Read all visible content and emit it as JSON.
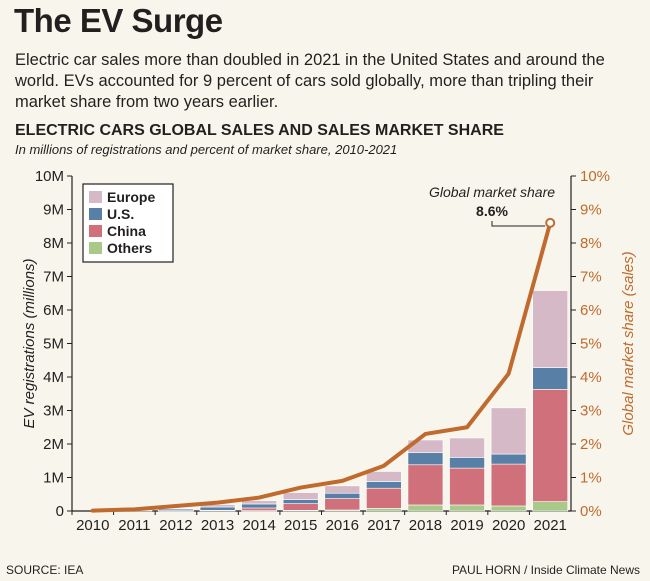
{
  "headline": "The EV Surge",
  "dek": "Electric car sales more than doubled in 2021 in the United States and around the world. EVs accounted for 9 percent of cars sold globally, more than tripling their market share from two years earlier.",
  "footer": {
    "source": "SOURCE: IEA",
    "credit": "PAUL HORN / Inside Climate News"
  },
  "chart_data": {
    "type": "bar",
    "stacked": true,
    "title": "ELECTRIC CARS GLOBAL SALES AND SALES MARKET SHARE",
    "subtitle": "In millions of registrations and percent of market share, 2010-2021",
    "ylabel": "EV registrations (millions)",
    "y2label": "Global market share (sales)",
    "ylim": [
      0,
      10
    ],
    "y2lim": [
      0,
      10
    ],
    "yticks": [
      "0",
      "1M",
      "2M",
      "3M",
      "4M",
      "5M",
      "6M",
      "7M",
      "8M",
      "9M",
      "10M"
    ],
    "y2ticks": [
      "0%",
      "1%",
      "2%",
      "3%",
      "4%",
      "5%",
      "6%",
      "7%",
      "8%",
      "9%",
      "10%"
    ],
    "categories": [
      "2010",
      "2011",
      "2012",
      "2013",
      "2014",
      "2015",
      "2016",
      "2017",
      "2018",
      "2019",
      "2020",
      "2021"
    ],
    "legend_position": "top-left",
    "series": [
      {
        "name": "Others",
        "color": "#a9c98a",
        "values": [
          0,
          0,
          0,
          0,
          0.01,
          0.02,
          0.03,
          0.08,
          0.18,
          0.18,
          0.15,
          0.28
        ]
      },
      {
        "name": "China",
        "color": "#cf707b",
        "values": [
          0,
          0,
          0.01,
          0.02,
          0.08,
          0.2,
          0.34,
          0.6,
          1.2,
          1.1,
          1.25,
          3.35
        ]
      },
      {
        "name": "U.S.",
        "color": "#5880a6",
        "values": [
          0,
          0.02,
          0.05,
          0.1,
          0.12,
          0.12,
          0.16,
          0.2,
          0.36,
          0.32,
          0.3,
          0.65
        ]
      },
      {
        "name": "Europe",
        "color": "#d6b9c7",
        "values": [
          0,
          0.01,
          0.02,
          0.07,
          0.1,
          0.21,
          0.22,
          0.3,
          0.38,
          0.58,
          1.38,
          2.3
        ]
      }
    ],
    "legend_order": [
      "Europe",
      "U.S.",
      "China",
      "Others"
    ],
    "line": {
      "name": "Global market share",
      "color": "#c06a2d",
      "axis": "right",
      "values": [
        0.01,
        0.05,
        0.15,
        0.25,
        0.4,
        0.7,
        0.9,
        1.35,
        2.3,
        2.5,
        4.1,
        8.6
      ],
      "annotation": {
        "label": "Global market share",
        "value_label": "8.6%"
      }
    }
  }
}
